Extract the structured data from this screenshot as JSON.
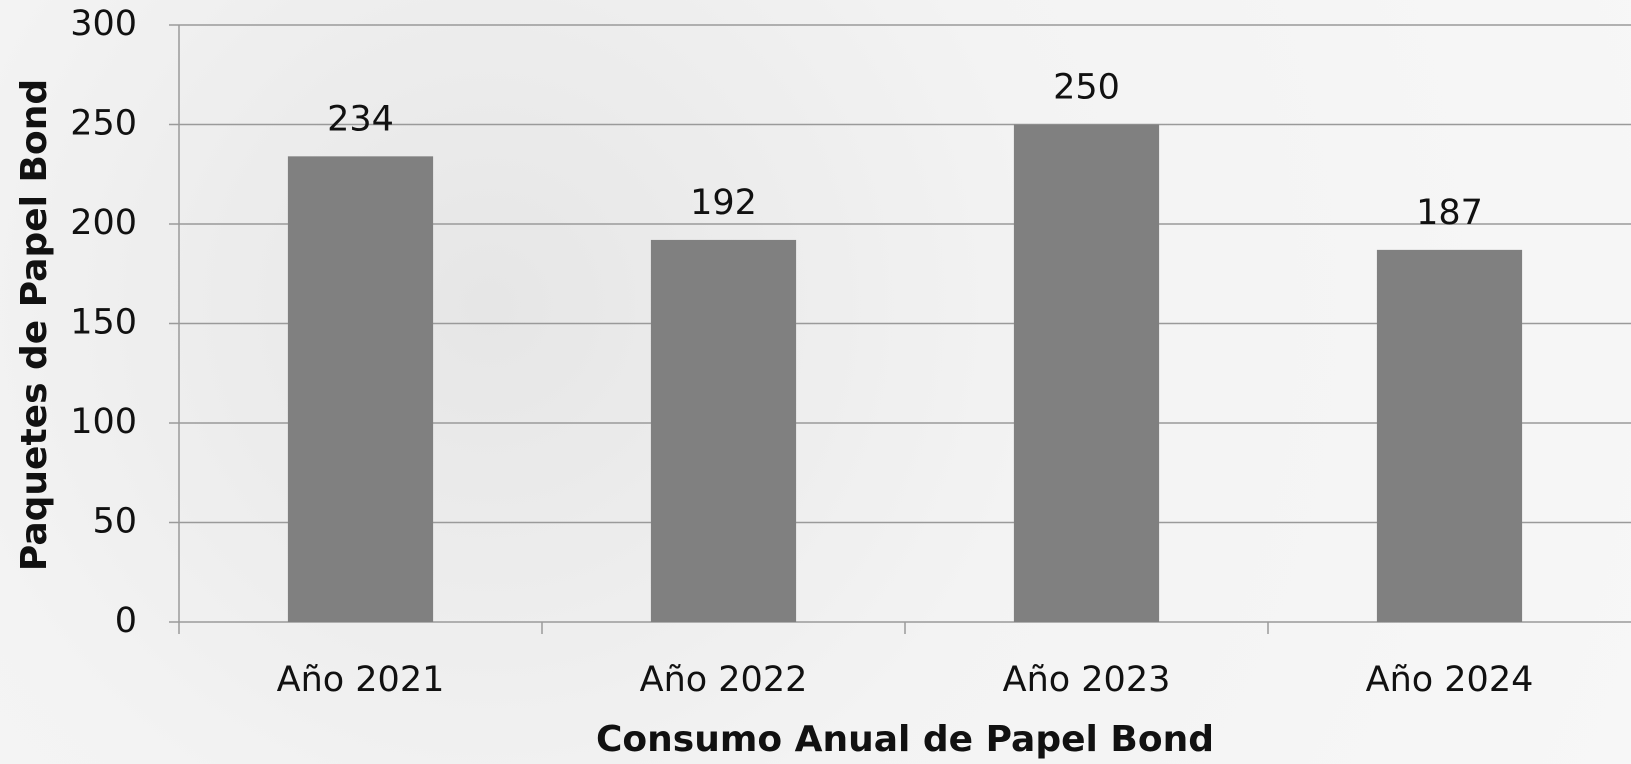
{
  "chart_data": {
    "type": "bar",
    "x_label": "Consumo Anual de Papel Bond",
    "y_label": "Paquetes de Papel Bond",
    "categories": [
      "Año 2021",
      "Año 2022",
      "Año 2023",
      "Año 2024"
    ],
    "values": [
      234,
      192,
      250,
      187
    ],
    "color": "#808080",
    "ylim": [
      0,
      300
    ],
    "yticks": [
      0,
      50,
      100,
      150,
      200,
      250,
      300
    ],
    "grid": true
  }
}
